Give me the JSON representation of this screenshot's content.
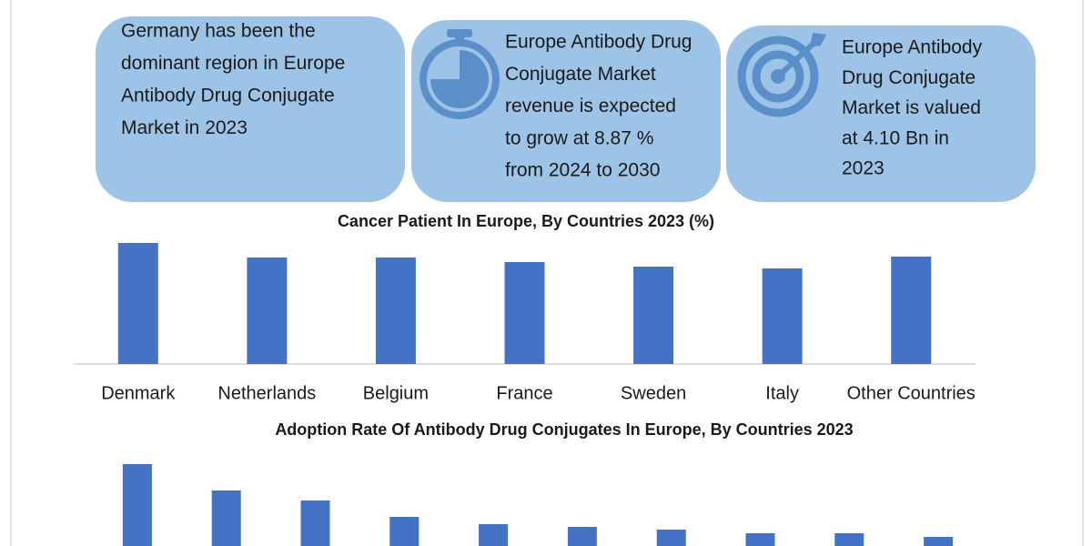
{
  "boxes": [
    {
      "lines": [
        "Germany has been the",
        "dominant region in Europe",
        "Antibody Drug Conjugate",
        "Market in 2023"
      ]
    },
    {
      "lines": [
        "Europe Antibody Drug",
        "Conjugate Market",
        "revenue is expected",
        "to grow at 8.87 %",
        "from 2024 to 2030"
      ]
    },
    {
      "lines": [
        "Europe Antibody",
        "Drug Conjugate",
        "Market is valued",
        "at 4.10 Bn in",
        "2023"
      ]
    }
  ],
  "chart_data": [
    {
      "type": "bar",
      "title": "Cancer Patient In Europe, By Countries 2023 (%)",
      "categories": [
        "Denmark",
        "Netherlands",
        "Belgium",
        "France",
        "Sweden",
        "Italy",
        "Other Countries"
      ],
      "values": [
        133,
        117,
        117,
        112,
        107,
        105,
        118
      ],
      "color": "#4472c4",
      "ylim": [
        0,
        140
      ]
    },
    {
      "type": "bar",
      "title": "Adoption Rate Of Antibody Drug Conjugates In Europe, By Countries 2023",
      "categories": [
        null,
        null,
        null,
        null,
        null,
        null,
        null,
        null,
        null,
        null
      ],
      "values": [
        90,
        61,
        50,
        32,
        24,
        21,
        18,
        14,
        14,
        10
      ],
      "color": "#4472c4",
      "ylim": [
        0,
        100
      ]
    }
  ]
}
